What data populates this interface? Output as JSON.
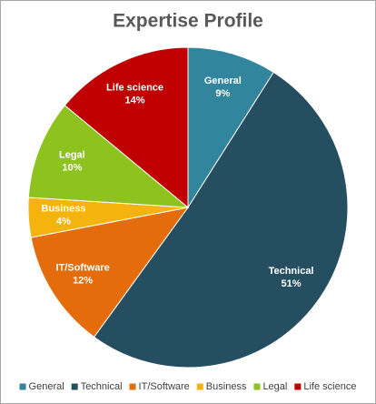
{
  "chart_data": {
    "type": "pie",
    "title": "Expertise Profile",
    "categories": [
      "General",
      "Technical",
      "IT/Software",
      "Business",
      "Legal",
      "Life science"
    ],
    "values": [
      9,
      51,
      12,
      4,
      10,
      14
    ],
    "value_labels": [
      "9%",
      "51%",
      "12%",
      "4%",
      "10%",
      "14%"
    ],
    "colors": [
      "#31859c",
      "#254e61",
      "#e46c0a",
      "#f5b30d",
      "#8dc21f",
      "#c00000"
    ],
    "legend": "bottom"
  }
}
